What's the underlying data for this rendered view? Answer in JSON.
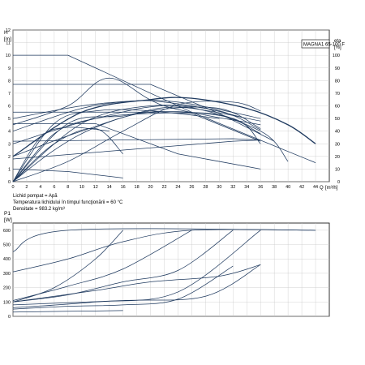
{
  "chart_data": [
    {
      "type": "line",
      "title": "MAGNA1 65-100 F",
      "ylabel": "H",
      "yunit": "[m]",
      "y2label": "eta",
      "y2unit": "[%]",
      "xlabel": "Q",
      "xunit": "[m³/h]",
      "xlim": [
        0,
        46
      ],
      "ylim": [
        0,
        12
      ],
      "y2lim": [
        0,
        120
      ],
      "x_ticks": [
        0,
        2,
        4,
        6,
        8,
        10,
        12,
        14,
        16,
        18,
        20,
        22,
        24,
        26,
        28,
        30,
        32,
        34,
        36,
        38,
        40,
        42,
        44
      ],
      "y_ticks": [
        0,
        1,
        2,
        3,
        4,
        5,
        6,
        7,
        8,
        9,
        10,
        11,
        12
      ],
      "y2_ticks": [
        0,
        10,
        20,
        30,
        40,
        50,
        60,
        70,
        80,
        90,
        100
      ],
      "grid": true,
      "notes": [
        "Lichid pompat = Apă",
        "Temperatura lichidului în timpul funcţionării = 60 °C",
        "Densitate = 983.2 kg/m³"
      ],
      "series": [
        {
          "kind": "head",
          "points": [
            [
              0,
              10
            ],
            [
              8,
              10
            ],
            [
              26,
              5.5
            ],
            [
              44,
              1.5
            ]
          ]
        },
        {
          "kind": "head",
          "points": [
            [
              0,
              7.7
            ],
            [
              20,
              7.7
            ],
            [
              30,
              5.4
            ],
            [
              38,
              3.2
            ]
          ]
        },
        {
          "kind": "head",
          "points": [
            [
              0,
              5.5
            ],
            [
              18,
              5.5
            ],
            [
              26,
              5.4
            ],
            [
              36,
              3.2
            ]
          ]
        },
        {
          "kind": "head",
          "points": [
            [
              0,
              4.6
            ],
            [
              12,
              4.6
            ],
            [
              24,
              2.2
            ],
            [
              36,
              1.0
            ]
          ]
        },
        {
          "kind": "head",
          "points": [
            [
              0,
              3.2
            ],
            [
              32,
              3.4
            ],
            [
              36,
              3.3
            ]
          ]
        },
        {
          "kind": "head",
          "points": [
            [
              0,
              1.8
            ],
            [
              32,
              3.2
            ],
            [
              36,
              3.3
            ]
          ]
        },
        {
          "kind": "head",
          "points": [
            [
              0,
              1.0
            ],
            [
              8,
              0.8
            ],
            [
              16,
              0.3
            ]
          ]
        },
        {
          "kind": "system",
          "points": [
            [
              0,
              0
            ],
            [
              8,
              1.6
            ],
            [
              16,
              4.0
            ],
            [
              24,
              6.1
            ],
            [
              32,
              6.3
            ],
            [
              36,
              5.6
            ]
          ]
        },
        {
          "kind": "system",
          "points": [
            [
              0,
              0
            ],
            [
              6,
              2.5
            ],
            [
              12,
              4.3
            ],
            [
              20,
              5.6
            ],
            [
              30,
              5.8
            ],
            [
              36,
              4.2
            ]
          ]
        },
        {
          "kind": "system",
          "points": [
            [
              0,
              0
            ],
            [
              10,
              4.6
            ],
            [
              20,
              6.0
            ],
            [
              30,
              5.6
            ],
            [
              36,
              4.1
            ]
          ]
        },
        {
          "kind": "system",
          "points": [
            [
              0,
              0
            ],
            [
              8,
              4.6
            ],
            [
              16,
              5.2
            ],
            [
              24,
              5.9
            ],
            [
              36,
              4.8
            ]
          ]
        },
        {
          "kind": "system",
          "points": [
            [
              0,
              0
            ],
            [
              6,
              3.0
            ],
            [
              12,
              4.2
            ],
            [
              16,
              2.2
            ]
          ]
        },
        {
          "kind": "system",
          "points": [
            [
              0,
              0
            ],
            [
              4,
              3.5
            ],
            [
              8,
              4.3
            ],
            [
              14,
              4.0
            ]
          ]
        },
        {
          "kind": "system",
          "points": [
            [
              0,
              0
            ],
            [
              6,
              3.8
            ],
            [
              12,
              5.0
            ],
            [
              20,
              5.4
            ],
            [
              30,
              5.3
            ],
            [
              36,
              3.8
            ]
          ]
        },
        {
          "kind": "system",
          "points": [
            [
              0,
              0
            ],
            [
              6,
              4.6
            ],
            [
              12,
              5.6
            ],
            [
              20,
              5.6
            ],
            [
              30,
              5.0
            ]
          ]
        },
        {
          "kind": "eta",
          "points": [
            [
              0,
              20
            ],
            [
              10,
              55
            ],
            [
              20,
              65
            ],
            [
              26,
              66
            ],
            [
              34,
              58
            ],
            [
              40,
              45
            ],
            [
              44,
              30
            ]
          ]
        },
        {
          "kind": "eta",
          "points": [
            [
              0,
              50
            ],
            [
              10,
              60
            ],
            [
              18,
              64
            ],
            [
              22,
              63
            ],
            [
              28,
              58
            ],
            [
              34,
              50
            ]
          ]
        },
        {
          "kind": "eta",
          "points": [
            [
              0,
              40
            ],
            [
              10,
              58
            ],
            [
              18,
              64
            ],
            [
              24,
              63
            ],
            [
              30,
              57
            ],
            [
              36,
              50
            ]
          ]
        },
        {
          "kind": "eta",
          "points": [
            [
              0,
              45
            ],
            [
              8,
              60
            ],
            [
              14,
              82
            ],
            [
              22,
              60
            ],
            [
              36,
              45
            ]
          ]
        },
        {
          "kind": "eta",
          "points": [
            [
              0,
              30
            ],
            [
              12,
              50
            ],
            [
              24,
              60
            ],
            [
              36,
              40
            ],
            [
              40,
              16
            ]
          ]
        },
        {
          "kind": "eta",
          "points": [
            [
              0,
              20
            ],
            [
              10,
              40
            ],
            [
              20,
              55
            ],
            [
              32,
              50
            ],
            [
              36,
              30
            ]
          ]
        }
      ]
    },
    {
      "type": "line",
      "ylabel": "P1",
      "yunit": "[W]",
      "xlim": [
        0,
        46
      ],
      "ylim": [
        0,
        650
      ],
      "y_ticks": [
        0,
        100,
        200,
        300,
        400,
        500,
        600
      ],
      "grid": true,
      "series": [
        {
          "points": [
            [
              0,
              450
            ],
            [
              8,
              600
            ],
            [
              44,
              600
            ]
          ]
        },
        {
          "points": [
            [
              0,
              310
            ],
            [
              8,
              400
            ],
            [
              16,
              520
            ],
            [
              26,
              600
            ],
            [
              44,
              600
            ]
          ]
        },
        {
          "points": [
            [
              0,
              100
            ],
            [
              6,
              200
            ],
            [
              12,
              400
            ],
            [
              16,
              600
            ]
          ]
        },
        {
          "points": [
            [
              0,
              110
            ],
            [
              8,
              210
            ],
            [
              16,
              330
            ],
            [
              26,
              600
            ]
          ]
        },
        {
          "points": [
            [
              0,
              100
            ],
            [
              8,
              150
            ],
            [
              16,
              240
            ],
            [
              24,
              320
            ],
            [
              32,
              600
            ]
          ]
        },
        {
          "points": [
            [
              0,
              100
            ],
            [
              12,
              180
            ],
            [
              20,
              240
            ],
            [
              30,
              280
            ],
            [
              36,
              360
            ]
          ]
        },
        {
          "points": [
            [
              0,
              60
            ],
            [
              12,
              100
            ],
            [
              24,
              170
            ],
            [
              36,
              600
            ]
          ]
        },
        {
          "points": [
            [
              0,
              80
            ],
            [
              16,
              110
            ],
            [
              28,
              140
            ],
            [
              36,
              360
            ]
          ]
        },
        {
          "points": [
            [
              0,
              50
            ],
            [
              8,
              70
            ],
            [
              16,
              80
            ],
            [
              24,
              120
            ],
            [
              32,
              350
            ]
          ]
        },
        {
          "points": [
            [
              0,
              30
            ],
            [
              8,
              35
            ],
            [
              16,
              40
            ]
          ]
        }
      ]
    }
  ]
}
